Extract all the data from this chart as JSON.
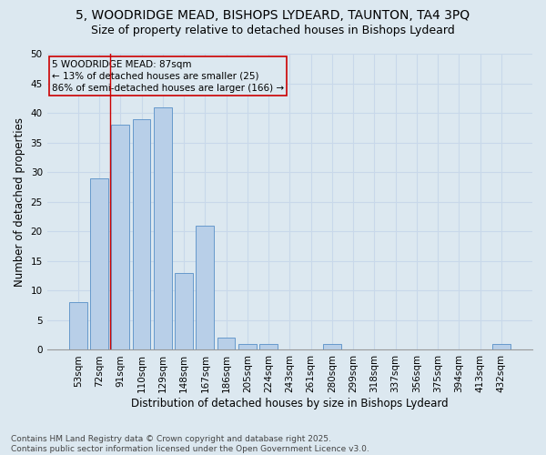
{
  "title_line1": "5, WOODRIDGE MEAD, BISHOPS LYDEARD, TAUNTON, TA4 3PQ",
  "title_line2": "Size of property relative to detached houses in Bishops Lydeard",
  "xlabel": "Distribution of detached houses by size in Bishops Lydeard",
  "ylabel": "Number of detached properties",
  "categories": [
    "53sqm",
    "72sqm",
    "91sqm",
    "110sqm",
    "129sqm",
    "148sqm",
    "167sqm",
    "186sqm",
    "205sqm",
    "224sqm",
    "243sqm",
    "261sqm",
    "280sqm",
    "299sqm",
    "318sqm",
    "337sqm",
    "356sqm",
    "375sqm",
    "394sqm",
    "413sqm",
    "432sqm"
  ],
  "values": [
    8,
    29,
    38,
    39,
    41,
    13,
    21,
    2,
    1,
    1,
    0,
    0,
    1,
    0,
    0,
    0,
    0,
    0,
    0,
    0,
    1
  ],
  "bar_color": "#b8cfe8",
  "bar_edge_color": "#6699cc",
  "grid_color": "#c8d8ea",
  "background_color": "#dce8f0",
  "annotation_box_text": "5 WOODRIDGE MEAD: 87sqm\n← 13% of detached houses are smaller (25)\n86% of semi-detached houses are larger (166) →",
  "annotation_box_color": "#cc0000",
  "vline_x_index": 1.5,
  "vline_color": "#cc0000",
  "ylim": [
    0,
    50
  ],
  "yticks": [
    0,
    5,
    10,
    15,
    20,
    25,
    30,
    35,
    40,
    45,
    50
  ],
  "footer_text": "Contains HM Land Registry data © Crown copyright and database right 2025.\nContains public sector information licensed under the Open Government Licence v3.0.",
  "title_fontsize": 10,
  "subtitle_fontsize": 9,
  "axis_label_fontsize": 8.5,
  "tick_fontsize": 7.5,
  "annotation_fontsize": 7.5,
  "footer_fontsize": 6.5
}
